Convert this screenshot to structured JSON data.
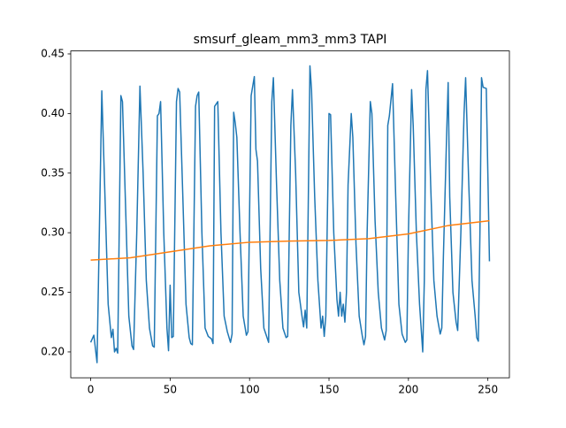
{
  "chart_data": {
    "type": "line",
    "title": "smsurf_gleam_mm3_mm3 TAPI",
    "xlim": [
      -12.55,
      263.55
    ],
    "xticks": [
      0,
      50,
      100,
      150,
      200,
      250
    ],
    "ylim": [
      0.1783,
      0.4525
    ],
    "yticks": [
      {
        "value": 0.2,
        "label": "0.20"
      },
      {
        "value": 0.25,
        "label": "0.25"
      },
      {
        "value": 0.3,
        "label": "0.30"
      },
      {
        "value": 0.35,
        "label": "0.35"
      },
      {
        "value": 0.4,
        "label": "0.40"
      },
      {
        "value": 0.45,
        "label": "0.45"
      }
    ],
    "grid": false,
    "series": [
      {
        "color": "#1f77b4",
        "x": [
          0,
          2,
          4,
          7,
          9,
          11,
          13,
          14,
          15,
          16,
          17,
          19,
          20,
          22,
          24,
          26,
          27,
          29,
          31,
          33,
          35,
          37,
          39,
          40,
          42,
          43,
          44,
          46,
          48,
          49,
          50,
          51,
          52,
          54,
          55,
          56,
          58,
          60,
          62,
          63,
          64,
          66,
          67,
          68,
          70,
          72,
          74,
          76,
          77,
          78,
          80,
          82,
          84,
          86,
          88,
          89,
          90,
          91,
          92,
          94,
          96,
          98,
          99,
          101,
          103,
          104,
          105,
          107,
          109,
          111,
          112,
          114,
          115,
          117,
          119,
          121,
          123,
          124,
          126,
          127,
          129,
          131,
          133,
          134,
          135,
          136,
          138,
          139,
          141,
          143,
          145,
          146,
          147,
          148,
          150,
          151,
          153,
          155,
          156,
          157,
          158,
          159,
          160,
          161,
          162,
          164,
          165,
          167,
          169,
          171,
          172,
          173,
          174,
          176,
          177,
          179,
          181,
          183,
          185,
          186,
          187,
          188,
          190,
          192,
          194,
          196,
          198,
          199,
          200,
          202,
          203,
          205,
          207,
          209,
          210,
          211,
          212,
          214,
          216,
          218,
          220,
          221,
          222,
          224,
          225,
          226,
          228,
          230,
          231,
          233,
          235,
          236,
          238,
          240,
          242,
          243,
          244,
          245,
          246,
          247,
          249,
          251
        ],
        "values": [
          0.208,
          0.214,
          0.191,
          0.419,
          0.33,
          0.24,
          0.212,
          0.219,
          0.2,
          0.203,
          0.199,
          0.415,
          0.41,
          0.32,
          0.23,
          0.205,
          0.202,
          0.3,
          0.423,
          0.35,
          0.26,
          0.22,
          0.205,
          0.204,
          0.398,
          0.4,
          0.41,
          0.3,
          0.22,
          0.201,
          0.256,
          0.212,
          0.213,
          0.41,
          0.421,
          0.418,
          0.33,
          0.24,
          0.212,
          0.207,
          0.206,
          0.406,
          0.415,
          0.418,
          0.3,
          0.22,
          0.213,
          0.211,
          0.207,
          0.406,
          0.41,
          0.3,
          0.23,
          0.217,
          0.208,
          0.215,
          0.401,
          0.392,
          0.38,
          0.3,
          0.23,
          0.214,
          0.217,
          0.415,
          0.431,
          0.37,
          0.36,
          0.27,
          0.22,
          0.212,
          0.208,
          0.41,
          0.43,
          0.34,
          0.26,
          0.22,
          0.212,
          0.213,
          0.39,
          0.42,
          0.35,
          0.25,
          0.23,
          0.221,
          0.235,
          0.22,
          0.44,
          0.42,
          0.33,
          0.26,
          0.22,
          0.23,
          0.213,
          0.23,
          0.4,
          0.399,
          0.3,
          0.244,
          0.23,
          0.25,
          0.23,
          0.24,
          0.225,
          0.25,
          0.34,
          0.4,
          0.38,
          0.29,
          0.23,
          0.213,
          0.206,
          0.213,
          0.3,
          0.41,
          0.4,
          0.31,
          0.25,
          0.22,
          0.21,
          0.218,
          0.39,
          0.398,
          0.425,
          0.33,
          0.24,
          0.215,
          0.208,
          0.21,
          0.3,
          0.42,
          0.39,
          0.3,
          0.24,
          0.2,
          0.26,
          0.42,
          0.436,
          0.34,
          0.26,
          0.23,
          0.215,
          0.22,
          0.28,
          0.38,
          0.426,
          0.33,
          0.25,
          0.225,
          0.218,
          0.3,
          0.4,
          0.43,
          0.34,
          0.26,
          0.23,
          0.212,
          0.209,
          0.3,
          0.43,
          0.422,
          0.421,
          0.276
        ]
      },
      {
        "color": "#ff7f0e",
        "x": [
          0,
          25,
          50,
          75,
          100,
          125,
          150,
          175,
          200,
          225,
          251
        ],
        "values": [
          0.277,
          0.279,
          0.284,
          0.289,
          0.292,
          0.293,
          0.2935,
          0.295,
          0.299,
          0.306,
          0.31
        ]
      }
    ]
  }
}
